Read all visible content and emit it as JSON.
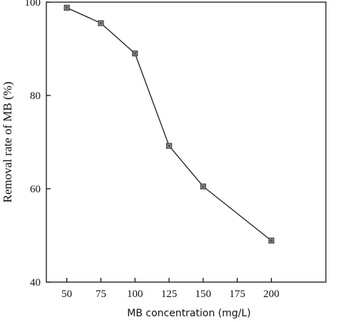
{
  "chart_data": {
    "type": "line",
    "title": "",
    "xlabel": "MB concentration (mg/L)",
    "ylabel": "Removal rate of MB (%)",
    "xlim": [
      35,
      240
    ],
    "ylim": [
      40,
      100
    ],
    "x_ticks": [
      50,
      75,
      100,
      125,
      150,
      175,
      200
    ],
    "y_ticks": [
      40,
      60,
      80,
      100
    ],
    "grid": false,
    "legend": "none",
    "series": [
      {
        "x": [
          50,
          75,
          100,
          125,
          150,
          200
        ],
        "values": [
          98.8,
          95.5,
          89.0,
          69.2,
          60.5,
          48.9
        ]
      }
    ],
    "colors": {
      "line": "#1a1a1a",
      "marker": "#444444",
      "axis": "#000000"
    },
    "marker_symbol": "square-with-cross"
  }
}
